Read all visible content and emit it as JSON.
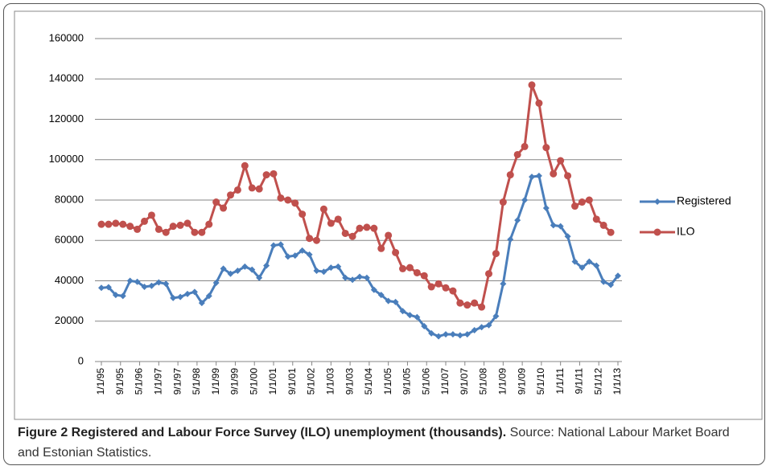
{
  "chart_data": {
    "type": "line",
    "x": [
      1995,
      1995.25,
      1995.5,
      1995.75,
      1996,
      1996.25,
      1996.5,
      1996.75,
      1997,
      1997.25,
      1997.5,
      1997.75,
      1998,
      1998.25,
      1998.5,
      1998.75,
      1999,
      1999.25,
      1999.5,
      1999.75,
      2000,
      2000.25,
      2000.5,
      2000.75,
      2001,
      2001.25,
      2001.5,
      2001.75,
      2002,
      2002.25,
      2002.5,
      2002.75,
      2003,
      2003.25,
      2003.5,
      2003.75,
      2004,
      2004.25,
      2004.5,
      2004.75,
      2005,
      2005.25,
      2005.5,
      2005.75,
      2006,
      2006.25,
      2006.5,
      2006.75,
      2007,
      2007.25,
      2007.5,
      2007.75,
      2008,
      2008.25,
      2008.5,
      2008.75,
      2009,
      2009.25,
      2009.5,
      2009.75,
      2010,
      2010.25,
      2010.5,
      2010.75,
      2011,
      2011.25,
      2011.5,
      2011.75,
      2012,
      2012.25,
      2012.5,
      2012.75,
      2013
    ],
    "series": [
      {
        "name": "Registered",
        "color": "#4a7ebb",
        "marker": "diamond",
        "values": [
          36500,
          36800,
          33000,
          32500,
          40000,
          39500,
          37000,
          37500,
          39200,
          38500,
          31500,
          32000,
          33500,
          34500,
          29000,
          32500,
          39000,
          46000,
          43500,
          45000,
          47000,
          45500,
          41500,
          47500,
          57500,
          58000,
          52000,
          52500,
          55000,
          53000,
          45000,
          44500,
          46500,
          47000,
          41500,
          40500,
          42000,
          41500,
          35500,
          33000,
          30000,
          29500,
          25000,
          23000,
          22000,
          17500,
          14000,
          12500,
          13500,
          13500,
          13000,
          13500,
          15500,
          17000,
          18000,
          22500,
          38500,
          60500,
          70000,
          80000,
          91500,
          92000,
          76000,
          67500,
          67000,
          62000,
          49500,
          46500,
          49500,
          47500,
          39500,
          38000,
          42500
        ]
      },
      {
        "name": "ILO",
        "color": "#c0504d",
        "marker": "circle",
        "values": [
          68000,
          68000,
          68500,
          68000,
          67000,
          65500,
          69500,
          72500,
          65500,
          64000,
          67000,
          67500,
          68500,
          64000,
          64000,
          68000,
          79000,
          76000,
          82500,
          85000,
          97000,
          86000,
          85500,
          92500,
          93000,
          81000,
          80000,
          78500,
          73000,
          61000,
          60000,
          75500,
          68500,
          70500,
          63500,
          62000,
          66000,
          66500,
          66000,
          56000,
          62500,
          54000,
          46000,
          46500,
          44000,
          42500,
          37000,
          38500,
          36500,
          35000,
          29000,
          28000,
          29000,
          27000,
          43500,
          53500,
          79000,
          92500,
          102500,
          106500,
          137000,
          128000,
          106000,
          93000,
          99500,
          92000,
          77000,
          79000,
          80000,
          70500,
          67500,
          64000,
          null
        ]
      }
    ],
    "xlim": [
      1995,
      2013
    ],
    "xticks": [
      {
        "value": 1995,
        "label": "1/1/95"
      },
      {
        "value": 1995.6667,
        "label": "9/1/95"
      },
      {
        "value": 1996.3333,
        "label": "5/1/96"
      },
      {
        "value": 1997,
        "label": "1/1/97"
      },
      {
        "value": 1997.6667,
        "label": "9/1/97"
      },
      {
        "value": 1998.3333,
        "label": "5/1/98"
      },
      {
        "value": 1999,
        "label": "1/1/99"
      },
      {
        "value": 1999.6667,
        "label": "9/1/99"
      },
      {
        "value": 2000.3333,
        "label": "5/1/00"
      },
      {
        "value": 2001,
        "label": "1/1/01"
      },
      {
        "value": 2001.6667,
        "label": "9/1/01"
      },
      {
        "value": 2002.3333,
        "label": "5/1/02"
      },
      {
        "value": 2003,
        "label": "1/1/03"
      },
      {
        "value": 2003.6667,
        "label": "9/1/03"
      },
      {
        "value": 2004.3333,
        "label": "5/1/04"
      },
      {
        "value": 2005,
        "label": "1/1/05"
      },
      {
        "value": 2005.6667,
        "label": "9/1/05"
      },
      {
        "value": 2006.3333,
        "label": "5/1/06"
      },
      {
        "value": 2007,
        "label": "1/1/07"
      },
      {
        "value": 2007.6667,
        "label": "9/1/07"
      },
      {
        "value": 2008.3333,
        "label": "5/1/08"
      },
      {
        "value": 2009,
        "label": "1/1/09"
      },
      {
        "value": 2009.6667,
        "label": "9/1/09"
      },
      {
        "value": 2010.3333,
        "label": "5/1/10"
      },
      {
        "value": 2011,
        "label": "1/1/11"
      },
      {
        "value": 2011.6667,
        "label": "9/1/11"
      },
      {
        "value": 2012.3333,
        "label": "5/1/12"
      },
      {
        "value": 2013,
        "label": "1/1/13"
      }
    ],
    "ylim": [
      0,
      160000
    ],
    "yticks": [
      0,
      20000,
      40000,
      60000,
      80000,
      100000,
      120000,
      140000,
      160000
    ],
    "grid": true,
    "legend": "right"
  },
  "caption": {
    "title": "Figure 2 Registered and Labour Force Survey (ILO) unemployment (thousands).",
    "source": "Source: National Labour Market Board and Estonian Statistics."
  }
}
